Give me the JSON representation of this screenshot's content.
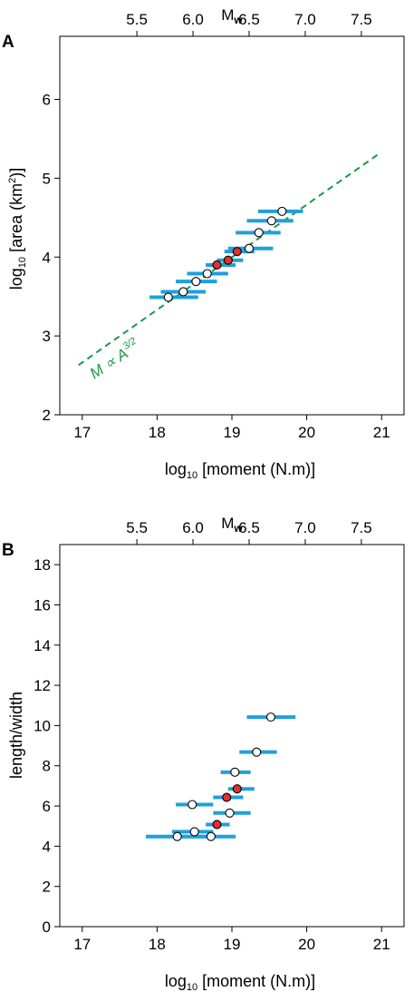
{
  "chart_data": [
    {
      "panel": "A",
      "type": "scatter",
      "xlabel": "log10 [moment (N.m)]",
      "ylabel": "log10 [area (km2)]",
      "top_axis_label": "Mw",
      "xlim": [
        16.7,
        21.3
      ],
      "ylim": [
        2,
        6.8
      ],
      "x_ticks": [
        17,
        18,
        19,
        20,
        21
      ],
      "y_ticks": [
        2,
        3,
        4,
        5,
        6
      ],
      "top_ticks": [
        "5.5",
        "6.0",
        "6.5",
        "7.0",
        "7.5"
      ],
      "top_tick_moments": [
        17.73,
        18.48,
        19.23,
        19.98,
        20.73
      ],
      "fit_line": {
        "label": "M ∝ A^3/2",
        "color": "#1a9a46",
        "x": [
          16.95,
          20.95
        ],
        "y": [
          2.63,
          5.3
        ]
      },
      "series": [
        {
          "name": "events (open)",
          "fill": "#ffffff",
          "points": [
            {
              "x": 18.15,
              "y": 3.49,
              "xmin": 17.9,
              "xmax": 18.55
            },
            {
              "x": 18.35,
              "y": 3.56,
              "xmin": 18.05,
              "xmax": 18.65
            },
            {
              "x": 18.52,
              "y": 3.69,
              "xmin": 18.25,
              "xmax": 18.8
            },
            {
              "x": 18.67,
              "y": 3.79,
              "xmin": 18.4,
              "xmax": 18.95
            },
            {
              "x": 19.23,
              "y": 4.11,
              "xmin": 18.95,
              "xmax": 19.55
            },
            {
              "x": 19.36,
              "y": 4.31,
              "xmin": 19.05,
              "xmax": 19.65
            },
            {
              "x": 19.53,
              "y": 4.46,
              "xmin": 19.2,
              "xmax": 19.82
            },
            {
              "x": 19.67,
              "y": 4.58,
              "xmin": 19.35,
              "xmax": 19.95
            }
          ]
        },
        {
          "name": "events (filled)",
          "fill": "#e03030",
          "points": [
            {
              "x": 18.8,
              "y": 3.9,
              "xmin": 18.65,
              "xmax": 19.05
            },
            {
              "x": 18.95,
              "y": 3.96,
              "xmin": 18.8,
              "xmax": 19.15
            },
            {
              "x": 19.07,
              "y": 4.07,
              "xmin": 18.9,
              "xmax": 19.3
            }
          ]
        }
      ]
    },
    {
      "panel": "B",
      "type": "scatter",
      "xlabel": "log10 [moment (N.m)]",
      "ylabel": "length/width",
      "top_axis_label": "Mw",
      "xlim": [
        16.7,
        21.3
      ],
      "ylim": [
        0,
        19
      ],
      "x_ticks": [
        17,
        18,
        19,
        20,
        21
      ],
      "y_ticks": [
        0,
        2,
        4,
        6,
        8,
        10,
        12,
        14,
        16,
        18
      ],
      "top_ticks": [
        "5.5",
        "6.0",
        "6.5",
        "7.0",
        "7.5"
      ],
      "top_tick_moments": [
        17.73,
        18.48,
        19.23,
        19.98,
        20.73
      ],
      "series": [
        {
          "name": "events (open)",
          "fill": "#ffffff",
          "points": [
            {
              "x": 18.27,
              "y": 4.48,
              "xmin": 17.85,
              "xmax": 18.7
            },
            {
              "x": 18.72,
              "y": 4.48,
              "xmin": 18.3,
              "xmax": 19.05
            },
            {
              "x": 18.5,
              "y": 4.72,
              "xmin": 18.2,
              "xmax": 18.75
            },
            {
              "x": 18.97,
              "y": 5.65,
              "xmin": 18.75,
              "xmax": 19.25
            },
            {
              "x": 18.47,
              "y": 6.07,
              "xmin": 18.25,
              "xmax": 18.75
            },
            {
              "x": 19.04,
              "y": 7.68,
              "xmin": 18.85,
              "xmax": 19.25
            },
            {
              "x": 19.33,
              "y": 8.68,
              "xmin": 19.1,
              "xmax": 19.6
            },
            {
              "x": 19.52,
              "y": 10.42,
              "xmin": 19.2,
              "xmax": 19.85
            }
          ]
        },
        {
          "name": "events (filled)",
          "fill": "#e03030",
          "points": [
            {
              "x": 18.8,
              "y": 5.08,
              "xmin": 18.65,
              "xmax": 18.97
            },
            {
              "x": 18.93,
              "y": 6.43,
              "xmin": 18.75,
              "xmax": 19.15
            },
            {
              "x": 19.07,
              "y": 6.85,
              "xmin": 18.95,
              "xmax": 19.3
            }
          ]
        }
      ]
    }
  ],
  "colors": {
    "errorbar": "#1ea0dc",
    "fit_line": "#1a9a46",
    "marker_edge": "#000000",
    "marker_fill_red": "#e03030"
  }
}
